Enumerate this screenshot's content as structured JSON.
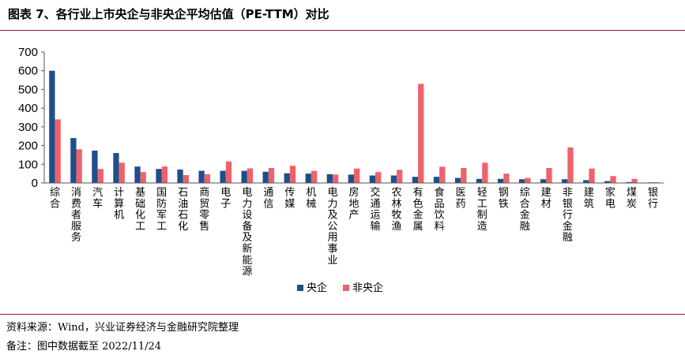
{
  "header": {
    "title": "图表 7、各行业上市央企与非央企平均估值（PE-TTM）对比"
  },
  "footer": {
    "source": "资料来源：Wind，兴业证券经济与金融研究院整理",
    "note": "备注：图中数据截至 2022/11/24"
  },
  "colors": {
    "central": "#1f4e8c",
    "noncentral": "#f0626a",
    "rule": "#8c1c1c"
  },
  "chart_data": {
    "type": "bar",
    "title": "图表 7、各行业上市央企与非央企平均估值（PE-TTM）对比",
    "xlabel": "",
    "ylabel": "",
    "ylim": [
      0,
      700
    ],
    "yticks": [
      0,
      100,
      200,
      300,
      400,
      500,
      600,
      700
    ],
    "grid": false,
    "legend_position": "bottom",
    "categories": [
      "综合",
      "消费者服务",
      "汽车",
      "计算机",
      "基础化工",
      "国防军工",
      "石油石化",
      "商贸零售",
      "电子",
      "电力设备及新能源",
      "通信",
      "传媒",
      "机械",
      "电力及公用事业",
      "房地产",
      "交通运输",
      "农林牧渔",
      "有色金属",
      "食品饮料",
      "医药",
      "轻工制造",
      "钢铁",
      "综合金融",
      "建材",
      "非银行金融",
      "建筑",
      "家电",
      "煤炭",
      "银行"
    ],
    "series": [
      {
        "name": "央企",
        "values": [
          600,
          240,
          173,
          160,
          88,
          75,
          72,
          65,
          65,
          65,
          60,
          52,
          50,
          47,
          45,
          40,
          40,
          33,
          33,
          27,
          22,
          22,
          20,
          20,
          20,
          15,
          10,
          5,
          3
        ]
      },
      {
        "name": "非央企",
        "values": [
          340,
          180,
          75,
          108,
          58,
          88,
          42,
          47,
          115,
          78,
          80,
          92,
          65,
          45,
          77,
          58,
          70,
          530,
          87,
          80,
          108,
          50,
          27,
          80,
          190,
          77,
          37,
          22,
          4
        ]
      }
    ]
  }
}
